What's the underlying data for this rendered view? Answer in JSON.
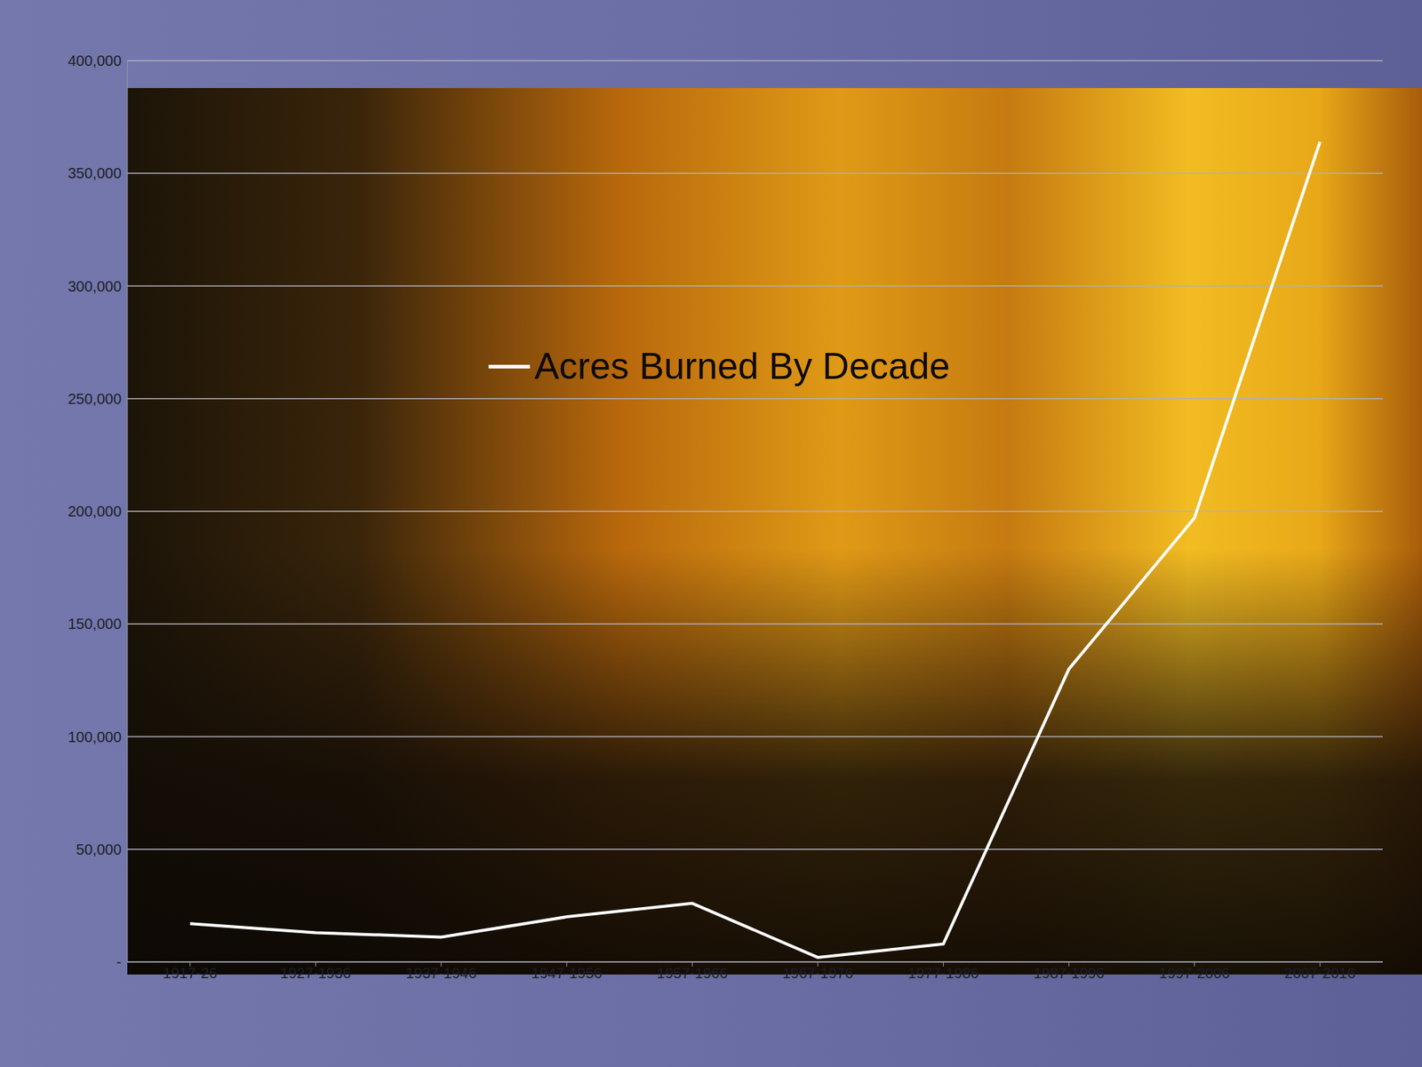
{
  "chart_data": {
    "type": "line",
    "categories": [
      "1917-26",
      "1927-1936",
      "1937-1946",
      "1947-1956",
      "1957-1966",
      "1967-1976",
      "1977-1986",
      "1987-1996",
      "1997-2006",
      "2007-2016"
    ],
    "series": [
      {
        "name": "Acres Burned By Decade",
        "color": "#ffffff",
        "values": [
          17000,
          13000,
          11000,
          20000,
          26000,
          2000,
          8000,
          130000,
          197000,
          364000
        ]
      }
    ],
    "ylim": [
      0,
      400000
    ],
    "yticks": [
      {
        "value": 0,
        "label": "-"
      },
      {
        "value": 50000,
        "label": "50,000"
      },
      {
        "value": 100000,
        "label": "100,000"
      },
      {
        "value": 150000,
        "label": "150,000"
      },
      {
        "value": 200000,
        "label": "200,000"
      },
      {
        "value": 250000,
        "label": "250,000"
      },
      {
        "value": 300000,
        "label": "300,000"
      },
      {
        "value": 350000,
        "label": "350,000"
      },
      {
        "value": 400000,
        "label": "400,000"
      }
    ],
    "grid": true,
    "legend": "upper center"
  }
}
